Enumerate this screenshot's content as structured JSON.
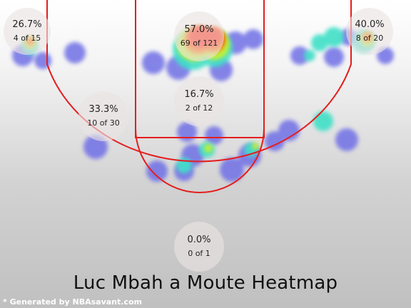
{
  "title": "Luc Mbah a Moute Heatmap",
  "credit": "* Generated by NBAsavant.com",
  "colors": {
    "court_lines": "#e41e1e",
    "zone_bubble": "#ece4e4",
    "heat_low": "#6f6fe6",
    "heat_mid": "#3fe0c8",
    "heat_high": "#ff2000"
  },
  "zones": [
    {
      "id": "left-corner-three",
      "pct": "26.7%",
      "made_attempts": "4 of 15"
    },
    {
      "id": "restricted-area",
      "pct": "57.0%",
      "made_attempts": "69 of 121"
    },
    {
      "id": "right-corner-three",
      "pct": "40.0%",
      "made_attempts": "8 of 20"
    },
    {
      "id": "paint-non-ra",
      "pct": "16.7%",
      "made_attempts": "2 of 12"
    },
    {
      "id": "left-midrange",
      "pct": "33.3%",
      "made_attempts": "10 of 30"
    },
    {
      "id": "backcourt",
      "pct": "0.0%",
      "made_attempts": "0 of 1"
    }
  ]
}
